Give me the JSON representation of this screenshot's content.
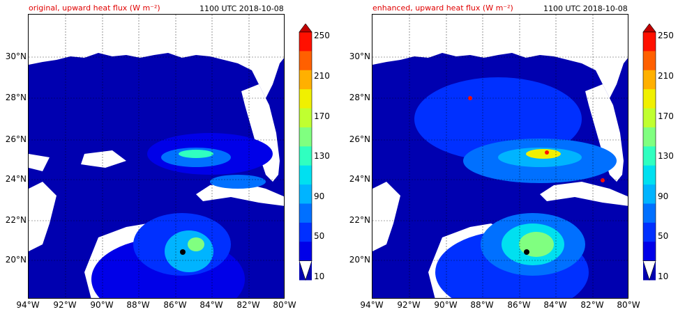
{
  "panels": [
    {
      "title": "original, upward heat flux (W m⁻²)",
      "time": "1100 UTC 2018-10-08"
    },
    {
      "title": "enhanced, upward heat flux (W m⁻²)",
      "time": "1100 UTC 2018-10-08"
    }
  ],
  "lat_ticks": [
    "30°N",
    "28°N",
    "26°N",
    "24°N",
    "22°N",
    "20°N"
  ],
  "lon_ticks": [
    "94°W",
    "92°W",
    "90°W",
    "88°W",
    "86°W",
    "84°W",
    "82°W",
    "80°W"
  ],
  "colorbar": {
    "labels": [
      "250",
      "210",
      "170",
      "130",
      "90",
      "50",
      "10"
    ],
    "levels": [
      10,
      30,
      50,
      70,
      90,
      110,
      130,
      150,
      170,
      190,
      210,
      230,
      250
    ],
    "colors": [
      "#0000b0",
      "#0000e8",
      "#0030ff",
      "#0070ff",
      "#00b4ff",
      "#00e0f0",
      "#30ffc0",
      "#80ff80",
      "#c0ff30",
      "#f0f000",
      "#ffb000",
      "#ff6000",
      "#ff1000",
      "#c00000"
    ]
  },
  "colors": {
    "title_accent": "#e00000",
    "ocean_low": "#0000b0",
    "land": "#ffffff"
  }
}
